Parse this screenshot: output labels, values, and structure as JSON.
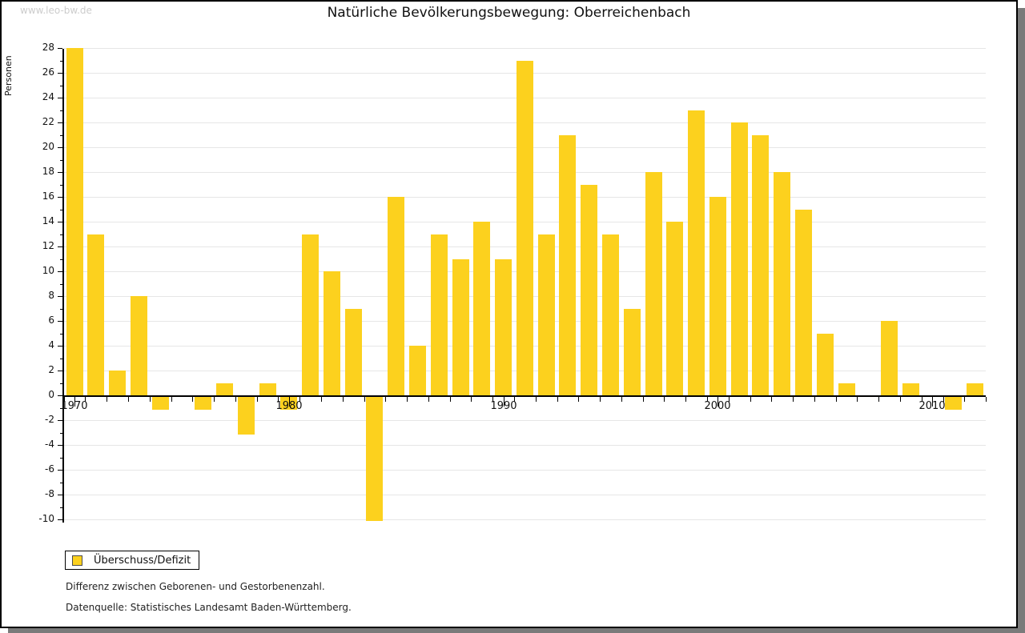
{
  "watermark": "www.leo-bw.de",
  "title": "Natürliche Bevölkerungsbewegung: Oberreichenbach",
  "y_axis_title": "Personen",
  "legend": {
    "label": "Überschuss/Defizit"
  },
  "footnotes": [
    "Differenz zwischen Geborenen- und Gestorbenenzahl.",
    "Datenquelle: Statistisches Landesamt Baden-Württemberg."
  ],
  "colors": {
    "bar": "#FCD11E",
    "grid": "#E6E6E6",
    "axis": "#000000",
    "text": "#111111",
    "watermark": "#CCCCCC",
    "shadow": "#7A7A7A"
  },
  "chart_data": {
    "type": "bar",
    "title": "Natürliche Bevölkerungsbewegung: Oberreichenbach",
    "xlabel": "",
    "ylabel": "Personen",
    "series_name": "Überschuss/Defizit",
    "x": [
      1970,
      1971,
      1972,
      1973,
      1974,
      1975,
      1976,
      1977,
      1978,
      1979,
      1980,
      1981,
      1982,
      1983,
      1984,
      1985,
      1986,
      1987,
      1988,
      1989,
      1990,
      1991,
      1992,
      1993,
      1994,
      1995,
      1996,
      1997,
      1998,
      1999,
      2000,
      2001,
      2002,
      2003,
      2004,
      2005,
      2006,
      2007,
      2008,
      2009,
      2010,
      2011,
      2012
    ],
    "values": [
      28,
      13,
      2,
      8,
      -1,
      0,
      -1,
      1,
      -3,
      1,
      -1,
      13,
      10,
      7,
      -10,
      16,
      4,
      13,
      11,
      14,
      11,
      27,
      13,
      21,
      17,
      13,
      7,
      18,
      14,
      23,
      16,
      22,
      21,
      18,
      15,
      5,
      1,
      0,
      6,
      1,
      0,
      -1,
      1
    ],
    "ylim": [
      -10,
      28
    ],
    "ytick_step": 2,
    "xticks_labeled": [
      1970,
      1980,
      1990,
      2000,
      2010
    ],
    "grid": true,
    "legend_position": "bottom-left",
    "bar_color": "#FCD11E"
  }
}
